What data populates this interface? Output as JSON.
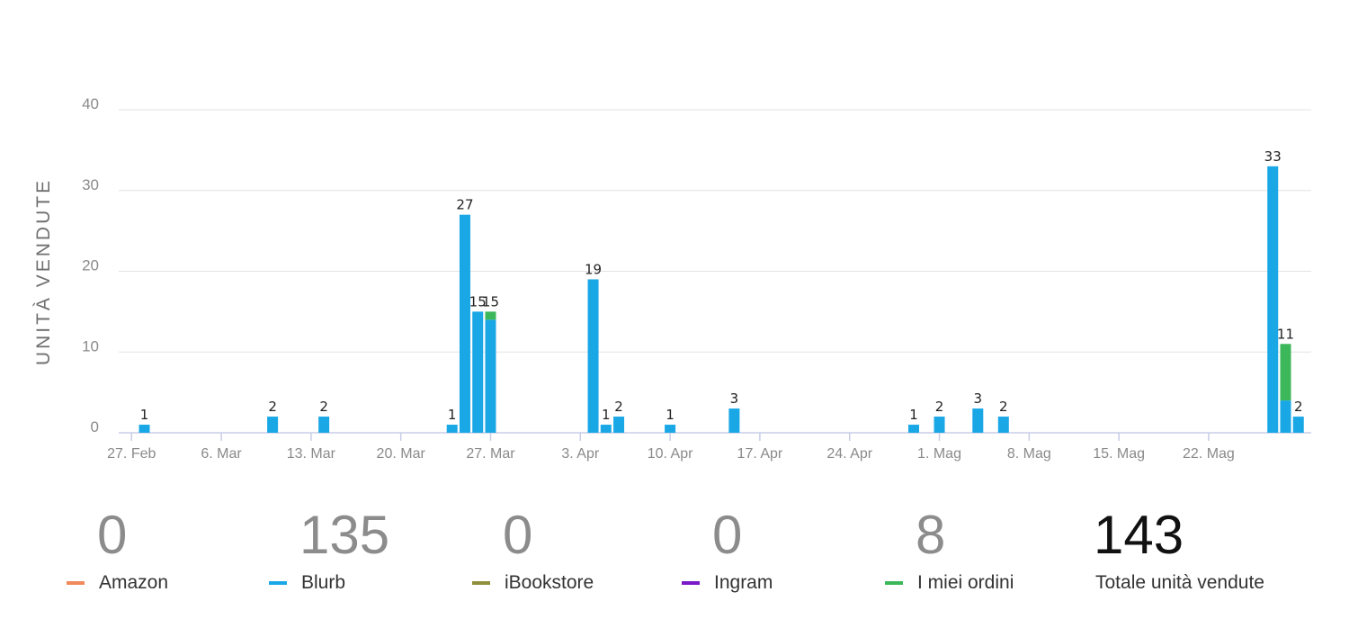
{
  "chart_data": {
    "type": "bar",
    "ylabel": "UNITÀ VENDUTE",
    "ylim": [
      0,
      40
    ],
    "yticks": [
      0,
      10,
      20,
      30,
      40
    ],
    "x_range": [
      "2018-02-26",
      "2018-05-30"
    ],
    "x_tick_dates": [
      "2018-02-27",
      "2018-03-06",
      "2018-03-13",
      "2018-03-20",
      "2018-03-27",
      "2018-04-03",
      "2018-04-10",
      "2018-04-17",
      "2018-04-24",
      "2018-05-01",
      "2018-05-08",
      "2018-05-15",
      "2018-05-22"
    ],
    "x_tick_labels": [
      "27. Feb",
      "6. Mar",
      "13. Mar",
      "20. Mar",
      "27. Mar",
      "3. Apr",
      "10. Apr",
      "17. Apr",
      "24. Apr",
      "1. Mag",
      "8. Mag",
      "15. Mag",
      "22. Mag"
    ],
    "grid": true,
    "stacked": true,
    "dates": [
      "2018-02-28",
      "2018-03-10",
      "2018-03-14",
      "2018-03-24",
      "2018-03-25",
      "2018-03-26",
      "2018-03-27",
      "2018-04-04",
      "2018-04-05",
      "2018-04-06",
      "2018-04-10",
      "2018-04-15",
      "2018-04-29",
      "2018-05-01",
      "2018-05-04",
      "2018-05-06",
      "2018-05-27",
      "2018-05-28",
      "2018-05-29"
    ],
    "totals": [
      1,
      2,
      2,
      1,
      27,
      15,
      15,
      19,
      1,
      2,
      1,
      3,
      1,
      2,
      3,
      2,
      33,
      11,
      2
    ],
    "series": [
      {
        "name": "Amazon",
        "color": "#f08a5d",
        "values": [
          0,
          0,
          0,
          0,
          0,
          0,
          0,
          0,
          0,
          0,
          0,
          0,
          0,
          0,
          0,
          0,
          0,
          0,
          0
        ]
      },
      {
        "name": "Blurb",
        "color": "#1aa7e6",
        "values": [
          1,
          2,
          2,
          1,
          27,
          15,
          14,
          19,
          1,
          2,
          1,
          3,
          1,
          2,
          3,
          2,
          33,
          4,
          2
        ]
      },
      {
        "name": "iBookstore",
        "color": "#8f8f3c",
        "values": [
          0,
          0,
          0,
          0,
          0,
          0,
          0,
          0,
          0,
          0,
          0,
          0,
          0,
          0,
          0,
          0,
          0,
          0,
          0
        ]
      },
      {
        "name": "Ingram",
        "color": "#7a19c8",
        "values": [
          0,
          0,
          0,
          0,
          0,
          0,
          0,
          0,
          0,
          0,
          0,
          0,
          0,
          0,
          0,
          0,
          0,
          0,
          0
        ]
      },
      {
        "name": "I miei ordini",
        "color": "#3cb75a",
        "values": [
          0,
          0,
          0,
          0,
          0,
          0,
          1,
          0,
          0,
          0,
          0,
          0,
          0,
          0,
          0,
          0,
          0,
          7,
          0
        ]
      }
    ]
  },
  "summary": [
    {
      "value": "0",
      "label": "Amazon",
      "color": "#f08a5d"
    },
    {
      "value": "135",
      "label": "Blurb",
      "color": "#1aa7e6"
    },
    {
      "value": "0",
      "label": "iBookstore",
      "color": "#8f8f3c"
    },
    {
      "value": "0",
      "label": "Ingram",
      "color": "#7a19c8"
    },
    {
      "value": "8",
      "label": "I miei ordini",
      "color": "#3cb75a"
    }
  ],
  "total": {
    "value": "143",
    "label": "Totale unità vendute"
  }
}
